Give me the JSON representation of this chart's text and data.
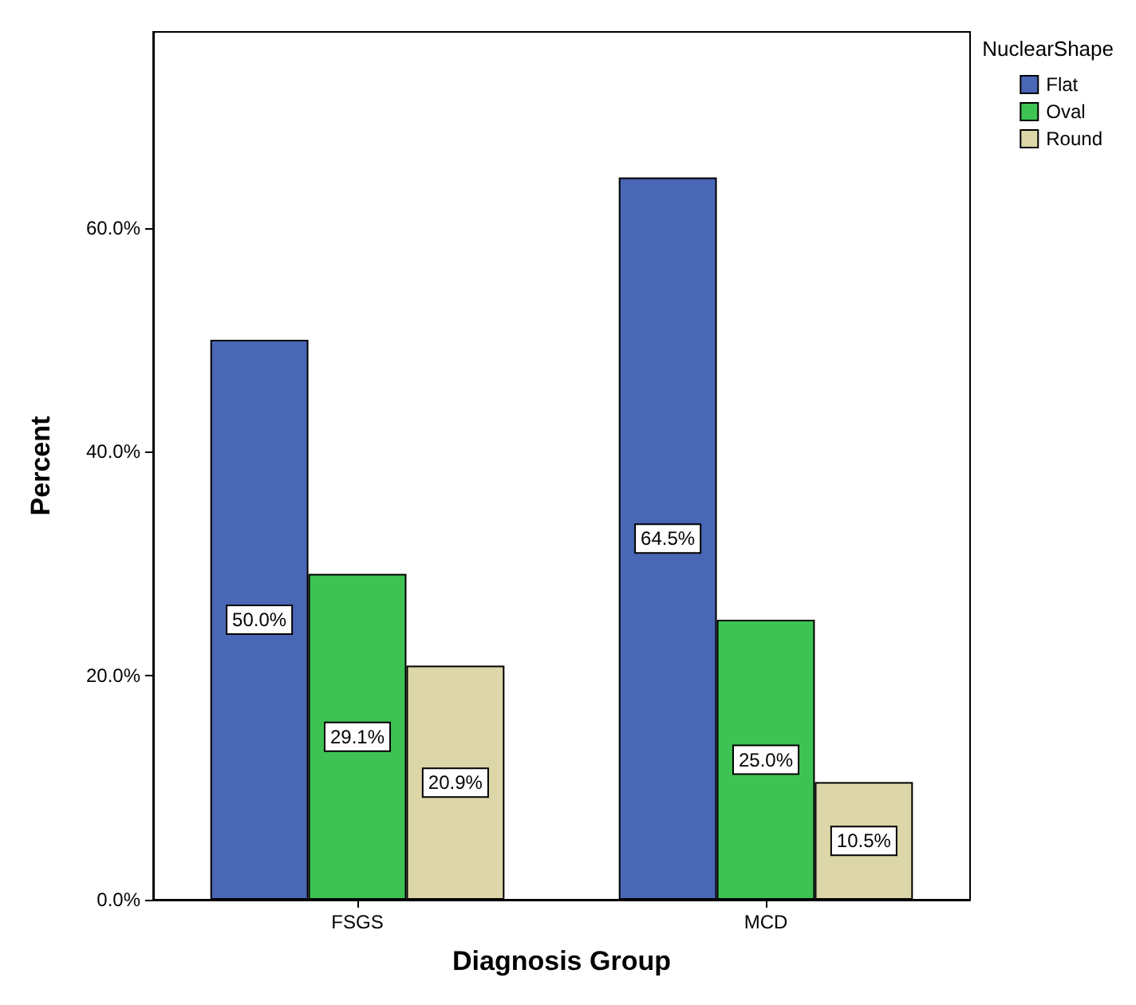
{
  "chart_data": {
    "type": "bar",
    "xlabel": "Diagnosis Group",
    "ylabel": "Percent",
    "legend_title": "NuclearShape",
    "legend": "top right",
    "categories": [
      "FSGS",
      "MCD"
    ],
    "series": [
      {
        "name": "Flat",
        "color": "#4a67b6",
        "values": [
          50.0,
          64.5
        ],
        "value_labels": [
          "50.0%",
          "64.5%"
        ]
      },
      {
        "name": "Oval",
        "color": "#3ec253",
        "values": [
          29.1,
          25.0
        ],
        "value_labels": [
          "29.1%",
          "25.0%"
        ]
      },
      {
        "name": "Round",
        "color": "#dcd6a9",
        "values": [
          20.9,
          10.5
        ],
        "value_labels": [
          "20.9%",
          "10.5%"
        ]
      }
    ],
    "ylim": [
      0,
      77.5
    ],
    "yticks": [
      {
        "value": 0,
        "label": "0.0%"
      },
      {
        "value": 20,
        "label": "20.0%"
      },
      {
        "value": 40,
        "label": "40.0%"
      },
      {
        "value": 60,
        "label": "60.0%"
      }
    ]
  }
}
